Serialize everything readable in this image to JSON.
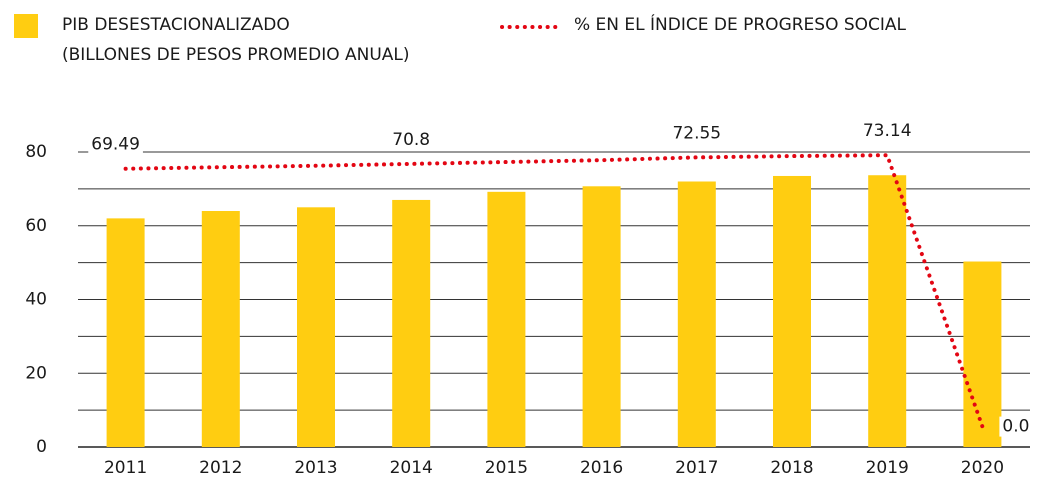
{
  "chart_data": {
    "type": "bar",
    "categories": [
      "2011",
      "2012",
      "2013",
      "2014",
      "2015",
      "2016",
      "2017",
      "2018",
      "2019",
      "2020"
    ],
    "series": [
      {
        "name": "PIB DESESTACIONALIZADO (BILLONES DE PESOS PROMEDIO ANUAL)",
        "type": "bar",
        "color": "#FFCD11",
        "values": [
          62,
          64,
          65,
          67,
          69.2,
          70.7,
          72,
          73.5,
          73.7,
          50.3
        ]
      },
      {
        "name": "% EN EL ÍNDICE DE PROGRESO SOCIAL",
        "type": "line",
        "axis": "y2",
        "color": "#E30613",
        "style": "dotted",
        "values": [
          69.49,
          69.9,
          70.3,
          70.8,
          71.3,
          71.8,
          72.55,
          72.9,
          73.14,
          0.0
        ],
        "value_labels": [
          "69.49",
          null,
          null,
          "70.8",
          null,
          null,
          "72.55",
          null,
          "73.14",
          "0.0"
        ]
      }
    ],
    "ylim": [
      0,
      80
    ],
    "yticks": [
      0,
      20,
      40,
      60,
      80
    ],
    "ygrid": [
      0,
      10,
      20,
      30,
      40,
      50,
      60,
      70,
      80
    ],
    "y2lim": [
      -5.5,
      74
    ],
    "grid": true,
    "legend": "top"
  }
}
